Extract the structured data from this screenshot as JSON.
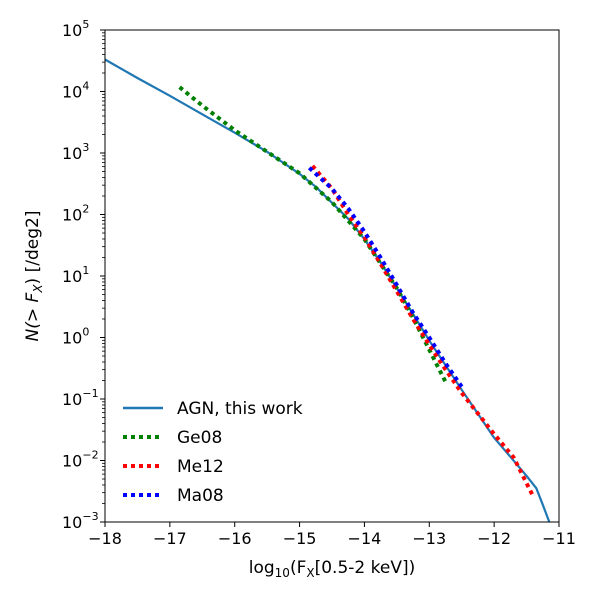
{
  "chart_data": {
    "type": "line",
    "title": "",
    "xlabel": {
      "prefix": "log",
      "sub": "10",
      "mid": "(F",
      "sub2": "X",
      "suffix": "[0.5-2 keV])"
    },
    "ylabel": {
      "prefix": "N(> F",
      "sub": "X",
      "suffix": ") [/deg2]"
    },
    "xlim": [
      -18,
      -11
    ],
    "ylim_log10": [
      -3,
      5
    ],
    "yscale": "log",
    "x_ticks": [
      -18,
      -17,
      -16,
      -15,
      -14,
      -13,
      -12,
      -11
    ],
    "x_tick_labels": [
      "−18",
      "−17",
      "−16",
      "−15",
      "−14",
      "−13",
      "−12",
      "−11"
    ],
    "y_ticks_log10": [
      -3,
      -2,
      -1,
      0,
      1,
      2,
      3,
      4,
      5
    ],
    "y_tick_labels": [
      {
        "base": "10",
        "exp": "−3"
      },
      {
        "base": "10",
        "exp": "−2"
      },
      {
        "base": "10",
        "exp": "−1"
      },
      {
        "base": "10",
        "exp": "0"
      },
      {
        "base": "10",
        "exp": "1"
      },
      {
        "base": "10",
        "exp": "2"
      },
      {
        "base": "10",
        "exp": "3"
      },
      {
        "base": "10",
        "exp": "4"
      },
      {
        "base": "10",
        "exp": "5"
      }
    ],
    "grid": false,
    "legend_position": "lower-left",
    "series": [
      {
        "name": "AGN, this work",
        "color": "#1f77b4",
        "style": "solid",
        "points": [
          [
            -18.0,
            4.52
          ],
          [
            -17.5,
            4.22
          ],
          [
            -17.0,
            3.93
          ],
          [
            -16.5,
            3.63
          ],
          [
            -16.0,
            3.33
          ],
          [
            -15.5,
            3.02
          ],
          [
            -15.0,
            2.66
          ],
          [
            -14.75,
            2.45
          ],
          [
            -14.5,
            2.19
          ],
          [
            -14.25,
            1.93
          ],
          [
            -14.0,
            1.6
          ],
          [
            -13.75,
            1.22
          ],
          [
            -13.5,
            0.8
          ],
          [
            -13.25,
            0.38
          ],
          [
            -13.0,
            -0.05
          ],
          [
            -12.75,
            -0.45
          ],
          [
            -12.5,
            -0.85
          ],
          [
            -12.25,
            -1.24
          ],
          [
            -12.0,
            -1.63
          ],
          [
            -11.75,
            -1.94
          ],
          [
            -11.5,
            -2.25
          ],
          [
            -11.35,
            -2.45
          ],
          [
            -11.25,
            -2.72
          ],
          [
            -11.15,
            -3.0
          ]
        ]
      },
      {
        "name": "Ge08",
        "color": "#008000",
        "style": "dotted",
        "points": [
          [
            -16.85,
            4.07
          ],
          [
            -16.5,
            3.77
          ],
          [
            -16.0,
            3.37
          ],
          [
            -15.5,
            3.02
          ],
          [
            -15.0,
            2.67
          ],
          [
            -14.5,
            2.2
          ],
          [
            -14.0,
            1.6
          ],
          [
            -13.5,
            0.8
          ],
          [
            -13.25,
            0.32
          ],
          [
            -13.0,
            -0.2
          ],
          [
            -12.75,
            -0.72
          ]
        ]
      },
      {
        "name": "Me12",
        "color": "#ff0000",
        "style": "dotted",
        "points": [
          [
            -14.8,
            2.79
          ],
          [
            -14.5,
            2.42
          ],
          [
            -14.25,
            2.0
          ],
          [
            -14.0,
            1.63
          ],
          [
            -13.75,
            1.2
          ],
          [
            -13.5,
            0.75
          ],
          [
            -13.25,
            0.3
          ],
          [
            -13.0,
            -0.12
          ],
          [
            -12.75,
            -0.52
          ],
          [
            -12.5,
            -0.9
          ],
          [
            -12.0,
            -1.57
          ],
          [
            -11.7,
            -1.95
          ],
          [
            -11.4,
            -2.58
          ]
        ]
      },
      {
        "name": "Ma08",
        "color": "#0000ff",
        "style": "dotted",
        "points": [
          [
            -14.85,
            2.76
          ],
          [
            -14.5,
            2.42
          ],
          [
            -14.25,
            2.1
          ],
          [
            -14.0,
            1.72
          ],
          [
            -13.75,
            1.3
          ],
          [
            -13.5,
            0.85
          ],
          [
            -13.25,
            0.4
          ],
          [
            -13.0,
            0.0
          ],
          [
            -12.75,
            -0.42
          ],
          [
            -12.5,
            -0.8
          ]
        ]
      }
    ]
  }
}
